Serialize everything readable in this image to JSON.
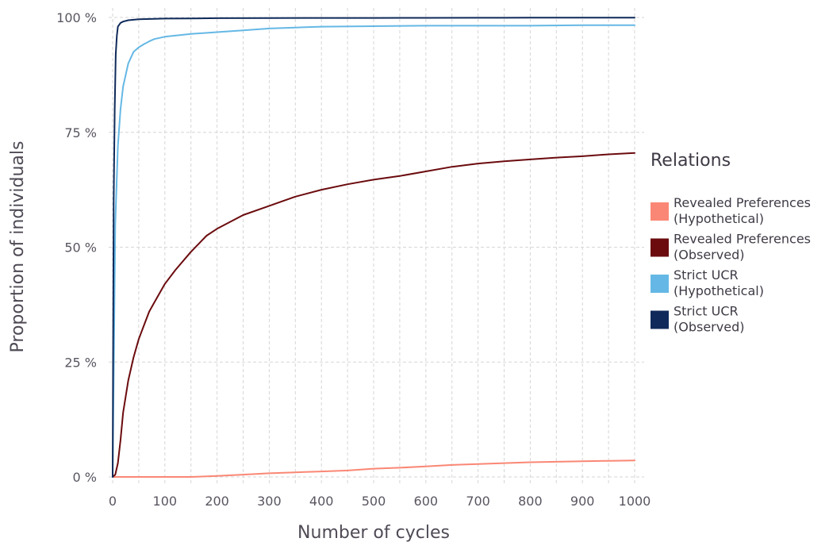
{
  "chart_data": {
    "type": "line",
    "title": "",
    "xlabel": "Number of cycles",
    "ylabel": "Proportion of individuals",
    "xlim": [
      0,
      1000
    ],
    "ylim": [
      0,
      100
    ],
    "x_ticks": [
      0,
      100,
      200,
      300,
      400,
      500,
      600,
      700,
      800,
      900,
      1000
    ],
    "x_tick_labels": [
      "0",
      "100",
      "200",
      "300",
      "400",
      "500",
      "600",
      "700",
      "800",
      "900",
      "1000"
    ],
    "y_ticks": [
      0,
      25,
      50,
      75,
      100
    ],
    "y_tick_labels": [
      "0 %",
      "25 %",
      "50 %",
      "75 %",
      "100 %"
    ],
    "grid": true,
    "legend": {
      "title": "Relations",
      "placement": "right",
      "entries": [
        {
          "line1": "Revealed Preferences",
          "line2": "(Hypothetical)",
          "color": "#fa8775"
        },
        {
          "line1": "Revealed Preferences",
          "line2": "(Observed)",
          "color": "#6b0b0e"
        },
        {
          "line1": "Strict UCR",
          "line2": "(Hypothetical)",
          "color": "#65b8e5"
        },
        {
          "line1": "Strict UCR",
          "line2": "(Observed)",
          "color": "#0f2a5a"
        }
      ]
    },
    "series": [
      {
        "color": "#fa8775",
        "x": [
          0,
          50,
          100,
          150,
          200,
          250,
          300,
          350,
          400,
          450,
          500,
          550,
          600,
          650,
          700,
          750,
          800,
          850,
          900,
          950,
          1000
        ],
        "y": [
          0,
          0,
          0,
          0,
          0.2,
          0.5,
          0.8,
          1.0,
          1.2,
          1.4,
          1.8,
          2.0,
          2.3,
          2.6,
          2.8,
          3.0,
          3.2,
          3.3,
          3.4,
          3.5,
          3.6
        ]
      },
      {
        "color": "#6b0b0e",
        "x": [
          0,
          5,
          10,
          15,
          20,
          30,
          40,
          50,
          60,
          70,
          80,
          100,
          120,
          150,
          180,
          200,
          250,
          300,
          350,
          400,
          450,
          500,
          550,
          600,
          650,
          700,
          750,
          800,
          850,
          900,
          950,
          1000
        ],
        "y": [
          0,
          0.5,
          3,
          8,
          14,
          21,
          26,
          30,
          33,
          36,
          38,
          42,
          45,
          49,
          52.5,
          54,
          57,
          59,
          61,
          62.5,
          63.7,
          64.7,
          65.5,
          66.5,
          67.5,
          68.2,
          68.7,
          69.1,
          69.5,
          69.8,
          70.2,
          70.5
        ]
      },
      {
        "color": "#65b8e5",
        "x": [
          0,
          5,
          10,
          15,
          20,
          30,
          40,
          50,
          60,
          70,
          80,
          100,
          150,
          200,
          250,
          300,
          350,
          400,
          500,
          600,
          700,
          800,
          900,
          1000
        ],
        "y": [
          0,
          55,
          72,
          80,
          85,
          90,
          92.5,
          93.5,
          94.2,
          94.8,
          95.3,
          95.8,
          96.4,
          96.8,
          97.2,
          97.6,
          97.8,
          98.0,
          98.1,
          98.2,
          98.2,
          98.2,
          98.3,
          98.3
        ]
      },
      {
        "color": "#0f2a5a",
        "x": [
          0,
          2,
          4,
          6,
          8,
          10,
          15,
          20,
          30,
          50,
          80,
          100,
          150,
          200,
          300,
          400,
          500,
          600,
          700,
          800,
          900,
          1000
        ],
        "y": [
          0,
          60,
          80,
          92,
          96,
          98,
          98.8,
          99.1,
          99.4,
          99.6,
          99.7,
          99.75,
          99.8,
          99.85,
          99.88,
          99.9,
          99.9,
          99.92,
          99.93,
          99.94,
          99.95,
          99.96
        ]
      }
    ]
  }
}
